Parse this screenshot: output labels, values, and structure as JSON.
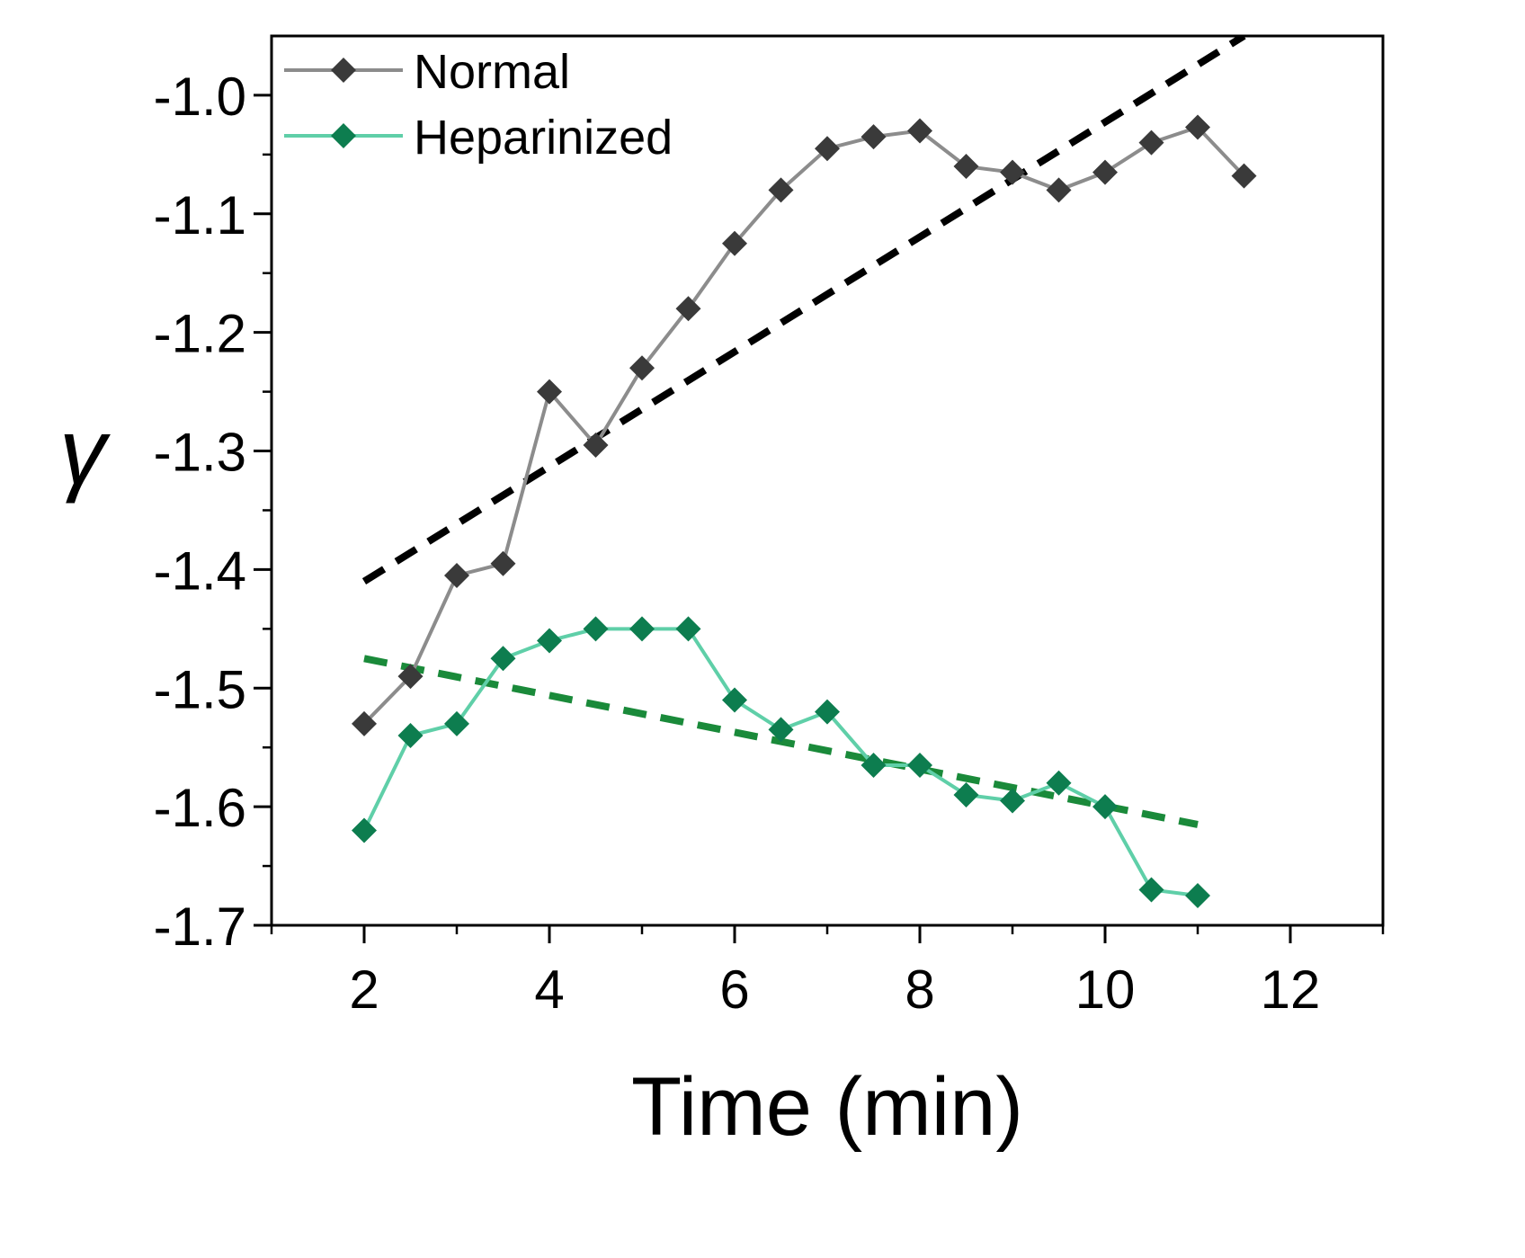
{
  "chart_data": {
    "type": "line",
    "title": "",
    "xlabel": "Time (min)",
    "ylabel": "γ",
    "xlim": [
      1,
      13
    ],
    "ylim": [
      -1.7,
      -0.95
    ],
    "x_ticks": [
      2,
      4,
      6,
      8,
      10,
      12
    ],
    "y_ticks": [
      -1.0,
      -1.1,
      -1.2,
      -1.3,
      -1.4,
      -1.5,
      -1.6,
      -1.7
    ],
    "x_tick_labels": [
      "2",
      "4",
      "6",
      "8",
      "10",
      "12"
    ],
    "y_tick_labels": [
      "-1.0",
      "-1.1",
      "-1.2",
      "-1.3",
      "-1.4",
      "-1.5",
      "-1.6",
      "-1.7"
    ],
    "legend": {
      "placement": "top-left"
    },
    "grid": false,
    "series": [
      {
        "name": "Normal",
        "color": "#8c8c8c",
        "marker_color": "#3a3a3a",
        "x": [
          2,
          2.5,
          3,
          3.5,
          4,
          4.5,
          5,
          5.5,
          6,
          6.5,
          7,
          7.5,
          8,
          8.5,
          9,
          9.5,
          10,
          10.5,
          11,
          11.5
        ],
        "y": [
          -1.53,
          -1.49,
          -1.405,
          -1.395,
          -1.25,
          -1.295,
          -1.23,
          -1.18,
          -1.125,
          -1.08,
          -1.045,
          -1.035,
          -1.03,
          -1.06,
          -1.065,
          -1.08,
          -1.065,
          -1.04,
          -1.027,
          -1.068
        ]
      },
      {
        "name": "Heparinized",
        "color": "#5fcfa8",
        "marker_color": "#0d7d4f",
        "x": [
          2,
          2.5,
          3,
          3.5,
          4,
          4.5,
          5,
          5.5,
          6,
          6.5,
          7,
          7.5,
          8,
          8.5,
          9,
          9.5,
          10,
          10.5,
          11
        ],
        "y": [
          -1.62,
          -1.54,
          -1.53,
          -1.475,
          -1.46,
          -1.45,
          -1.45,
          -1.45,
          -1.51,
          -1.535,
          -1.52,
          -1.565,
          -1.565,
          -1.59,
          -1.595,
          -1.58,
          -1.6,
          -1.67,
          -1.675
        ]
      }
    ],
    "fit_lines": [
      {
        "of": "Normal",
        "color": "#000000",
        "x": [
          2,
          11.5
        ],
        "y": [
          -1.41,
          -0.95
        ]
      },
      {
        "of": "Heparinized",
        "color": "#1a8a3a",
        "x": [
          2,
          11
        ],
        "y": [
          -1.475,
          -1.615
        ]
      }
    ]
  }
}
